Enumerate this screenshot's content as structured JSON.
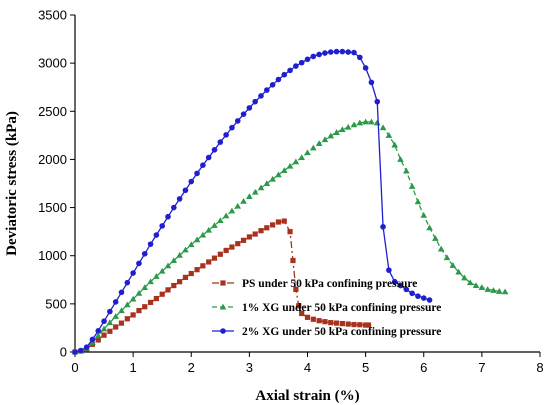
{
  "chart_data": {
    "type": "line",
    "xlabel": "Axial strain (%)",
    "ylabel": "Deviatoric stress (kPa)",
    "xlim": [
      0,
      8
    ],
    "ylim": [
      0,
      3500
    ],
    "xticks": [
      0,
      1,
      2,
      3,
      4,
      5,
      6,
      7,
      8
    ],
    "yticks": [
      0,
      500,
      1000,
      1500,
      2000,
      2500,
      3000,
      3500
    ],
    "grid": false,
    "legend_position": "bottom-right",
    "series": [
      {
        "name": "PS under 50 kPa confining pressure",
        "color": "#a8321e",
        "marker": "square",
        "line_style": "dash-dot",
        "x": [
          0.0,
          0.1,
          0.2,
          0.3,
          0.4,
          0.5,
          0.6,
          0.7,
          0.8,
          0.9,
          1.0,
          1.1,
          1.2,
          1.3,
          1.4,
          1.5,
          1.6,
          1.7,
          1.8,
          1.9,
          2.0,
          2.1,
          2.2,
          2.3,
          2.4,
          2.5,
          2.6,
          2.7,
          2.8,
          2.9,
          3.0,
          3.1,
          3.2,
          3.3,
          3.4,
          3.5,
          3.6,
          3.7,
          3.75,
          3.8,
          3.85,
          3.9,
          4.0,
          4.1,
          4.2,
          4.3,
          4.4,
          4.5,
          4.6,
          4.7,
          4.8,
          4.9,
          5.0,
          5.05
        ],
        "y": [
          0,
          10,
          30,
          80,
          125,
          175,
          215,
          260,
          300,
          345,
          385,
          430,
          470,
          515,
          555,
          600,
          645,
          690,
          730,
          775,
          815,
          855,
          895,
          935,
          975,
          1015,
          1055,
          1090,
          1125,
          1160,
          1195,
          1225,
          1260,
          1290,
          1320,
          1350,
          1360,
          1250,
          950,
          650,
          480,
          400,
          360,
          340,
          325,
          315,
          305,
          300,
          295,
          290,
          285,
          283,
          280,
          280
        ]
      },
      {
        "name": "1% XG under 50 kPa confining pressure",
        "color": "#2a9a48",
        "marker": "triangle",
        "line_style": "dashed",
        "x": [
          0.0,
          0.1,
          0.2,
          0.3,
          0.4,
          0.5,
          0.6,
          0.7,
          0.8,
          0.9,
          1.0,
          1.1,
          1.2,
          1.3,
          1.4,
          1.5,
          1.6,
          1.7,
          1.8,
          1.9,
          2.0,
          2.1,
          2.2,
          2.3,
          2.4,
          2.5,
          2.6,
          2.7,
          2.8,
          2.9,
          3.0,
          3.1,
          3.2,
          3.3,
          3.4,
          3.5,
          3.6,
          3.7,
          3.8,
          3.9,
          4.0,
          4.1,
          4.2,
          4.3,
          4.4,
          4.5,
          4.6,
          4.7,
          4.8,
          4.9,
          5.0,
          5.1,
          5.2,
          5.3,
          5.4,
          5.5,
          5.6,
          5.7,
          5.8,
          5.9,
          6.0,
          6.1,
          6.2,
          6.3,
          6.4,
          6.5,
          6.6,
          6.7,
          6.8,
          6.9,
          7.0,
          7.1,
          7.2,
          7.3,
          7.4
        ],
        "y": [
          0,
          10,
          40,
          100,
          170,
          240,
          305,
          370,
          430,
          490,
          550,
          610,
          670,
          730,
          785,
          840,
          895,
          950,
          1005,
          1060,
          1115,
          1165,
          1215,
          1265,
          1315,
          1365,
          1415,
          1465,
          1515,
          1565,
          1615,
          1660,
          1705,
          1750,
          1795,
          1840,
          1885,
          1930,
          1975,
          2020,
          2070,
          2120,
          2165,
          2205,
          2245,
          2280,
          2310,
          2335,
          2360,
          2380,
          2390,
          2390,
          2380,
          2330,
          2250,
          2150,
          2000,
          1880,
          1720,
          1560,
          1420,
          1290,
          1180,
          1070,
          980,
          900,
          830,
          770,
          720,
          690,
          670,
          650,
          640,
          630,
          625
        ]
      },
      {
        "name": "2% XG under 50 kPa confining pressure",
        "color": "#1f1fd0",
        "marker": "circle",
        "line_style": "solid",
        "x": [
          0.0,
          0.1,
          0.2,
          0.3,
          0.4,
          0.5,
          0.6,
          0.7,
          0.8,
          0.9,
          1.0,
          1.1,
          1.2,
          1.3,
          1.4,
          1.5,
          1.6,
          1.7,
          1.8,
          1.9,
          2.0,
          2.1,
          2.2,
          2.3,
          2.4,
          2.5,
          2.6,
          2.7,
          2.8,
          2.9,
          3.0,
          3.1,
          3.2,
          3.3,
          3.4,
          3.5,
          3.6,
          3.7,
          3.8,
          3.9,
          4.0,
          4.1,
          4.2,
          4.3,
          4.4,
          4.5,
          4.6,
          4.7,
          4.8,
          4.9,
          5.0,
          5.1,
          5.2,
          5.3,
          5.4,
          5.5,
          5.6,
          5.7,
          5.8,
          5.9,
          6.0,
          6.1
        ],
        "y": [
          0,
          15,
          50,
          130,
          220,
          320,
          420,
          520,
          620,
          720,
          820,
          920,
          1020,
          1120,
          1215,
          1310,
          1405,
          1500,
          1590,
          1680,
          1770,
          1855,
          1940,
          2020,
          2100,
          2180,
          2255,
          2330,
          2400,
          2470,
          2535,
          2600,
          2660,
          2720,
          2775,
          2830,
          2880,
          2925,
          2970,
          3005,
          3040,
          3070,
          3090,
          3105,
          3115,
          3120,
          3120,
          3115,
          3110,
          3060,
          2950,
          2800,
          2600,
          1300,
          850,
          730,
          690,
          650,
          610,
          580,
          560,
          540
        ]
      }
    ]
  }
}
